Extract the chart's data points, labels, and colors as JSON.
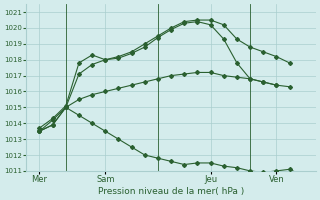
{
  "xlabel": "Pression niveau de la mer( hPa )",
  "ylim": [
    1011,
    1021.5
  ],
  "xlim": [
    0,
    11
  ],
  "yticks": [
    1011,
    1012,
    1013,
    1014,
    1015,
    1016,
    1017,
    1018,
    1019,
    1020,
    1021
  ],
  "bg_color": "#d4ecec",
  "grid_color": "#aacece",
  "line_color": "#2a6030",
  "vline_positions": [
    1.5,
    5.0,
    8.5
  ],
  "xtick_positions": [
    0.5,
    3.0,
    7.0,
    9.5
  ],
  "xtick_labels": [
    "Mer",
    "Sam",
    "Jeu",
    "Ven"
  ],
  "lines": [
    {
      "x": [
        0.5,
        1.0,
        1.5,
        2.0,
        2.5,
        3.0,
        3.5,
        4.0,
        4.5,
        5.0,
        5.5,
        6.0,
        6.5,
        7.0,
        7.5,
        8.0,
        8.5,
        9.0,
        9.5,
        10.0
      ],
      "y": [
        1013.7,
        1014.3,
        1015.1,
        1017.8,
        1018.3,
        1018.0,
        1018.2,
        1018.5,
        1019.0,
        1019.5,
        1020.0,
        1020.4,
        1020.5,
        1020.5,
        1020.2,
        1019.3,
        1018.8,
        1018.5,
        1018.2,
        1017.8
      ]
    },
    {
      "x": [
        0.5,
        1.0,
        1.5,
        2.0,
        2.5,
        3.0,
        3.5,
        4.0,
        4.5,
        5.0,
        5.5,
        6.0,
        6.5,
        7.0,
        7.5,
        8.0,
        8.5,
        9.0,
        9.5
      ],
      "y": [
        1013.5,
        1014.2,
        1015.0,
        1017.1,
        1017.7,
        1018.0,
        1018.1,
        1018.4,
        1018.8,
        1019.4,
        1019.9,
        1020.3,
        1020.4,
        1020.2,
        1019.3,
        1017.8,
        1016.8,
        1016.6,
        1016.4
      ]
    },
    {
      "x": [
        0.5,
        1.0,
        1.5,
        2.0,
        2.5,
        3.0,
        3.5,
        4.0,
        4.5,
        5.0,
        5.5,
        6.0,
        6.5,
        7.0,
        7.5,
        8.0,
        8.5,
        9.0,
        9.5,
        10.0
      ],
      "y": [
        1013.5,
        1013.9,
        1015.0,
        1015.5,
        1015.8,
        1016.0,
        1016.2,
        1016.4,
        1016.6,
        1016.8,
        1017.0,
        1017.1,
        1017.2,
        1017.2,
        1017.0,
        1016.9,
        1016.8,
        1016.6,
        1016.4,
        1016.3
      ]
    },
    {
      "x": [
        0.5,
        1.0,
        1.5,
        2.0,
        2.5,
        3.0,
        3.5,
        4.0,
        4.5,
        5.0,
        5.5,
        6.0,
        6.5,
        7.0,
        7.5,
        8.0,
        8.5,
        9.0,
        9.5,
        10.0,
        10.5
      ],
      "y": [
        1013.5,
        1013.9,
        1015.0,
        1014.5,
        1014.0,
        1013.5,
        1013.0,
        1012.5,
        1012.0,
        1011.8,
        1011.6,
        1011.4,
        1011.5,
        1011.5,
        1011.3,
        1011.2,
        1011.0,
        1010.9,
        1011.0,
        1011.1,
        1010.7
      ]
    }
  ]
}
